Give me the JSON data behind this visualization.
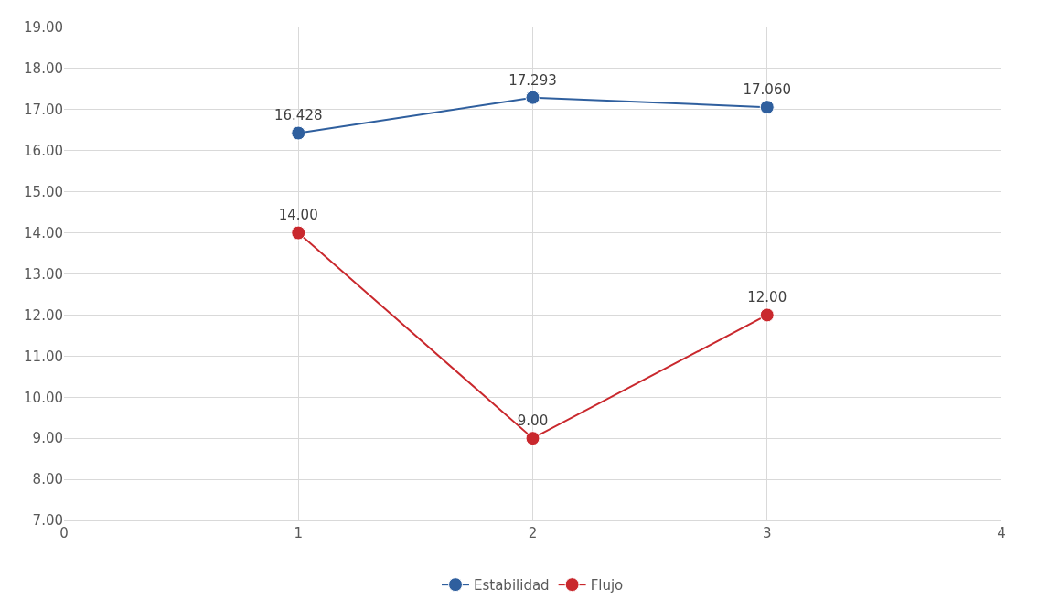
{
  "chart_data": {
    "type": "line",
    "x": [
      1,
      2,
      3
    ],
    "series": [
      {
        "name": "Estabilidad",
        "color": "#2f5f9e",
        "values": [
          16.428,
          17.293,
          17.06
        ],
        "value_labels": [
          "16.428",
          "17.293",
          "17.060"
        ]
      },
      {
        "name": "Flujo",
        "color": "#c9282d",
        "values": [
          14,
          9,
          12
        ],
        "value_labels": [
          "14.00",
          "9.00",
          "12.00"
        ]
      }
    ],
    "xlim": [
      0,
      4
    ],
    "xticks": [
      0,
      1,
      2,
      3,
      4
    ],
    "ylim": [
      7,
      19
    ],
    "yticks": [
      {
        "value": 7,
        "label": "7.00"
      },
      {
        "value": 8,
        "label": "8.00"
      },
      {
        "value": 9,
        "label": "9.00"
      },
      {
        "value": 10,
        "label": "10.00"
      },
      {
        "value": 11,
        "label": "11.00"
      },
      {
        "value": 12,
        "label": "12.00"
      },
      {
        "value": 13,
        "label": "13.00"
      },
      {
        "value": 14,
        "label": "14.00"
      },
      {
        "value": 15,
        "label": "15.00"
      },
      {
        "value": 16,
        "label": "16.00"
      },
      {
        "value": 17,
        "label": "17.00"
      },
      {
        "value": 18,
        "label": "18.00"
      },
      {
        "value": 19,
        "label": "19.00"
      }
    ],
    "grid": true,
    "legend": "bottom",
    "marker": "circle",
    "line_style": "solid"
  }
}
